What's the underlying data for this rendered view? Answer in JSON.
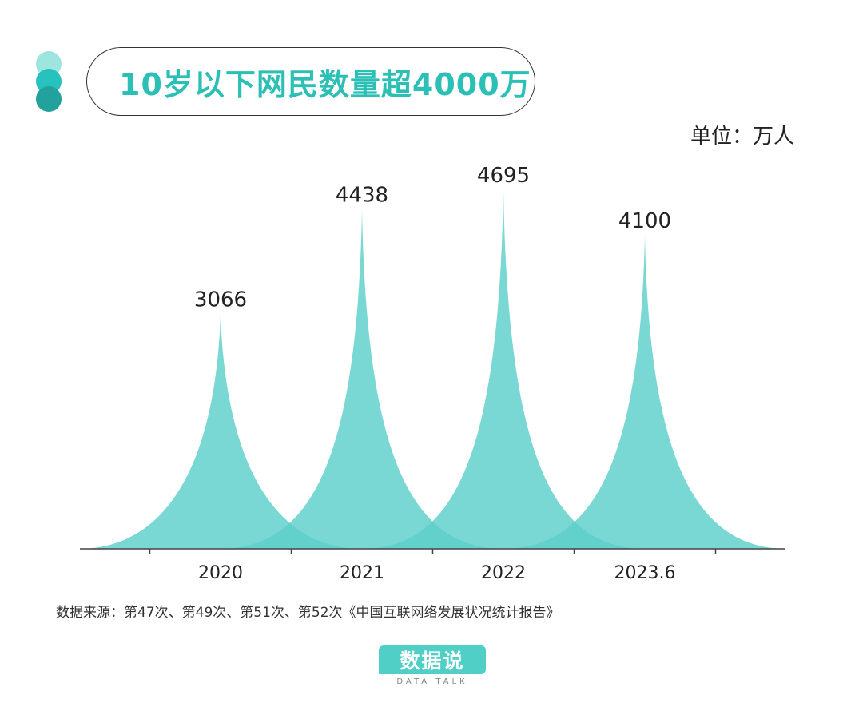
{
  "header": {
    "title": "10岁以下网民数量超4000万",
    "unit": "单位：万人"
  },
  "chart_data": {
    "type": "area",
    "title": "10岁以下网民数量超4000万",
    "ylabel": "",
    "xlabel": "",
    "categories": [
      "2020",
      "2021",
      "2022",
      "2023.6"
    ],
    "values": [
      3066,
      4438,
      4695,
      4100
    ],
    "data_labels": [
      "3066",
      "4438",
      "4695",
      "4100"
    ],
    "ylim": [
      0,
      5000
    ],
    "grid": false,
    "legend": "none",
    "color": "#5dcfca"
  },
  "footer": {
    "source": "数据来源：第47次、第49次、第51次、第52次《中国互联网络发展状况统计报告》",
    "brand": "数据说",
    "brand_sub": "DATA TALK"
  }
}
